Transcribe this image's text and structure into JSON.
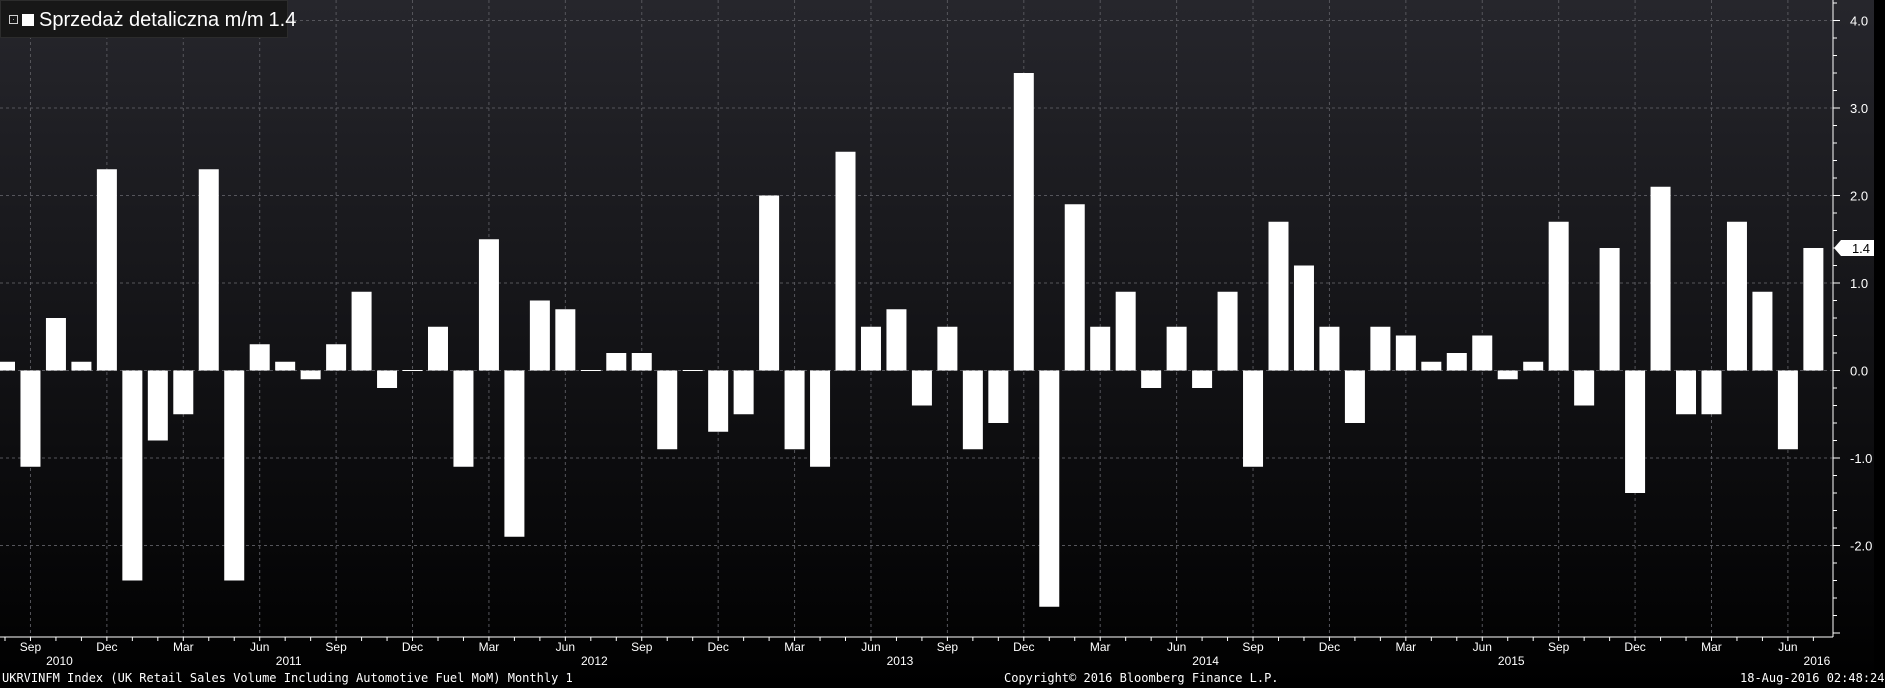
{
  "legend": {
    "label": "Sprzedaż detaliczna m/m",
    "value": "1.4"
  },
  "colors": {
    "background_top": "#26262c",
    "background_bottom": "#000000",
    "bar": "#ffffff",
    "grid": "#55555b",
    "axis": "#ffffff",
    "text": "#ffffff",
    "last_value_badge": "#ffffff",
    "last_value_text": "#000000"
  },
  "footer": {
    "left": "UKRVINFM Index (UK Retail Sales Volume Including Automotive Fuel MoM)  Monthly 1",
    "center": "Copyright© 2016 Bloomberg Finance L.P.",
    "right": "18-Aug-2016 02:48:24"
  },
  "chart_data": {
    "type": "bar",
    "title": "",
    "xlabel": "",
    "ylabel": "",
    "ylim": [
      -3.0,
      4.3
    ],
    "y_ticks": [
      "4.0",
      "3.0",
      "2.0",
      "1.0",
      "0.0",
      "-1.0",
      "-2.0"
    ],
    "y_tick_values": [
      4.0,
      3.0,
      2.0,
      1.0,
      0.0,
      -1.0,
      -2.0
    ],
    "last_value_label": "1.4",
    "grid": true,
    "legend_position": "top-left",
    "categories": [
      "Aug 2010",
      "Sep 2010",
      "Oct 2010",
      "Nov 2010",
      "Dec 2010",
      "Jan 2011",
      "Feb 2011",
      "Mar 2011",
      "Apr 2011",
      "May 2011",
      "Jun 2011",
      "Jul 2011",
      "Aug 2011",
      "Sep 2011",
      "Oct 2011",
      "Nov 2011",
      "Dec 2011",
      "Jan 2012",
      "Feb 2012",
      "Mar 2012",
      "Apr 2012",
      "May 2012",
      "Jun 2012",
      "Jul 2012",
      "Aug 2012",
      "Sep 2012",
      "Oct 2012",
      "Nov 2012",
      "Dec 2012",
      "Jan 2013",
      "Feb 2013",
      "Mar 2013",
      "Apr 2013",
      "May 2013",
      "Jun 2013",
      "Jul 2013",
      "Aug 2013",
      "Sep 2013",
      "Oct 2013",
      "Nov 2013",
      "Dec 2013",
      "Jan 2014",
      "Feb 2014",
      "Mar 2014",
      "Apr 2014",
      "May 2014",
      "Jun 2014",
      "Jul 2014",
      "Aug 2014",
      "Sep 2014",
      "Oct 2014",
      "Nov 2014",
      "Dec 2014",
      "Jan 2015",
      "Feb 2015",
      "Mar 2015",
      "Apr 2015",
      "May 2015",
      "Jun 2015",
      "Jul 2015",
      "Aug 2015",
      "Sep 2015",
      "Oct 2015",
      "Nov 2015",
      "Dec 2015",
      "Jan 2016",
      "Feb 2016",
      "Mar 2016",
      "Apr 2016",
      "May 2016",
      "Jun 2016",
      "Jul 2016"
    ],
    "values": [
      0.1,
      -1.1,
      0.6,
      0.1,
      2.3,
      -2.4,
      -0.8,
      -0.5,
      2.3,
      -2.4,
      0.3,
      0.1,
      -0.1,
      0.3,
      0.9,
      -0.2,
      0.0,
      0.5,
      -1.1,
      1.5,
      -1.9,
      0.8,
      0.7,
      0.0,
      0.2,
      0.2,
      -0.9,
      0.0,
      -0.7,
      -0.5,
      2.0,
      -0.9,
      -1.1,
      2.5,
      0.5,
      0.7,
      -0.4,
      0.5,
      -0.9,
      -0.6,
      3.4,
      -2.7,
      1.9,
      0.5,
      0.9,
      -0.2,
      0.5,
      -0.2,
      0.9,
      -1.1,
      1.7,
      1.2,
      0.5,
      -0.6,
      0.5,
      0.4,
      0.1,
      0.2,
      0.4,
      -0.1,
      0.1,
      1.7,
      -0.4,
      1.4,
      -1.4,
      2.1,
      -0.5,
      -0.5,
      1.7,
      0.9,
      -0.9,
      1.4
    ],
    "x_month_labels": [
      {
        "month": "Sep",
        "index": 1
      },
      {
        "month": "Dec",
        "index": 4
      },
      {
        "month": "Mar",
        "index": 7
      },
      {
        "month": "Jun",
        "index": 10
      },
      {
        "month": "Sep",
        "index": 13
      },
      {
        "month": "Dec",
        "index": 16
      },
      {
        "month": "Mar",
        "index": 19
      },
      {
        "month": "Jun",
        "index": 22
      },
      {
        "month": "Sep",
        "index": 25
      },
      {
        "month": "Dec",
        "index": 28
      },
      {
        "month": "Mar",
        "index": 31
      },
      {
        "month": "Jun",
        "index": 34
      },
      {
        "month": "Sep",
        "index": 37
      },
      {
        "month": "Dec",
        "index": 40
      },
      {
        "month": "Mar",
        "index": 43
      },
      {
        "month": "Jun",
        "index": 46
      },
      {
        "month": "Sep",
        "index": 49
      },
      {
        "month": "Dec",
        "index": 52
      },
      {
        "month": "Mar",
        "index": 55
      },
      {
        "month": "Jun",
        "index": 58
      },
      {
        "month": "Sep",
        "index": 61
      },
      {
        "month": "Dec",
        "index": 64
      },
      {
        "month": "Mar",
        "index": 67
      },
      {
        "month": "Jun",
        "index": 70
      }
    ],
    "x_year_labels": [
      {
        "year": "2010",
        "index": 1
      },
      {
        "year": "2011",
        "index": 10
      },
      {
        "year": "2012",
        "index": 22
      },
      {
        "year": "2013",
        "index": 34
      },
      {
        "year": "2014",
        "index": 46
      },
      {
        "year": "2015",
        "index": 58
      },
      {
        "year": "2016",
        "index": 70
      }
    ]
  }
}
